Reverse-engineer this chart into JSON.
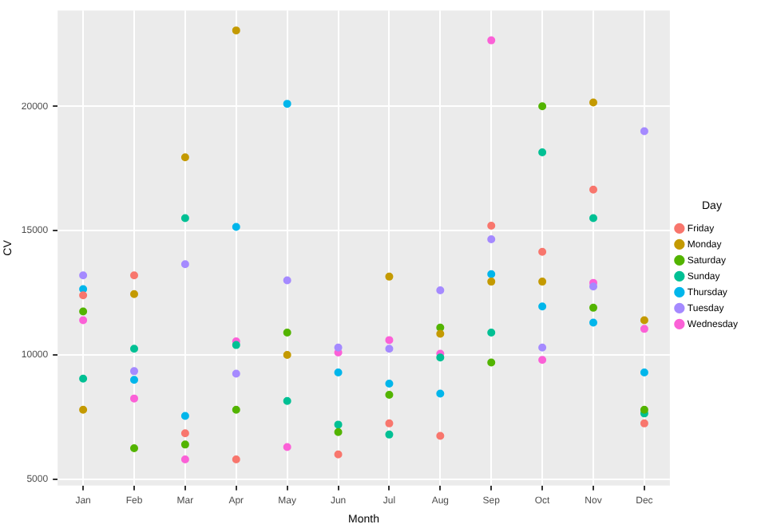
{
  "chart_data": {
    "type": "scatter",
    "xlabel": "Month",
    "ylabel": "CV",
    "legend_title": "Day",
    "legend": "right",
    "grid": true,
    "marker": "circle",
    "categories": [
      "Jan",
      "Feb",
      "Mar",
      "Apr",
      "May",
      "Jun",
      "Jul",
      "Aug",
      "Sep",
      "Oct",
      "Nov",
      "Dec"
    ],
    "ylim": [
      4750,
      23850
    ],
    "yticks": [
      5000,
      10000,
      15000,
      20000
    ],
    "series": [
      {
        "name": "Friday",
        "color": "#f8766d",
        "values": [
          12400,
          13200,
          6850,
          5800,
          null,
          6000,
          7250,
          6750,
          15200,
          14150,
          16650,
          7250
        ]
      },
      {
        "name": "Monday",
        "color": "#c49a00",
        "values": [
          7800,
          12450,
          17950,
          23050,
          10000,
          null,
          13150,
          10850,
          12950,
          12950,
          20150,
          11400
        ]
      },
      {
        "name": "Saturday",
        "color": "#53b400",
        "values": [
          11750,
          6250,
          6400,
          7800,
          10900,
          6900,
          8400,
          11100,
          9700,
          20000,
          11900,
          7800
        ]
      },
      {
        "name": "Sunday",
        "color": "#00c094",
        "values": [
          9050,
          10250,
          15500,
          10400,
          8150,
          7200,
          6800,
          9900,
          10900,
          18150,
          15500,
          7650
        ]
      },
      {
        "name": "Thursday",
        "color": "#00b6eb",
        "values": [
          12650,
          9000,
          7550,
          15150,
          20100,
          9300,
          8850,
          8450,
          13250,
          11950,
          11300,
          9300
        ]
      },
      {
        "name": "Tuesday",
        "color": "#a58aff",
        "values": [
          13200,
          9350,
          13650,
          9250,
          13000,
          10300,
          10250,
          12600,
          14650,
          10300,
          12750,
          19000
        ]
      },
      {
        "name": "Wednesday",
        "color": "#fb61d7",
        "values": [
          11400,
          8250,
          5800,
          10550,
          6300,
          10100,
          10600,
          10050,
          22650,
          9800,
          12900,
          11050
        ]
      }
    ]
  }
}
